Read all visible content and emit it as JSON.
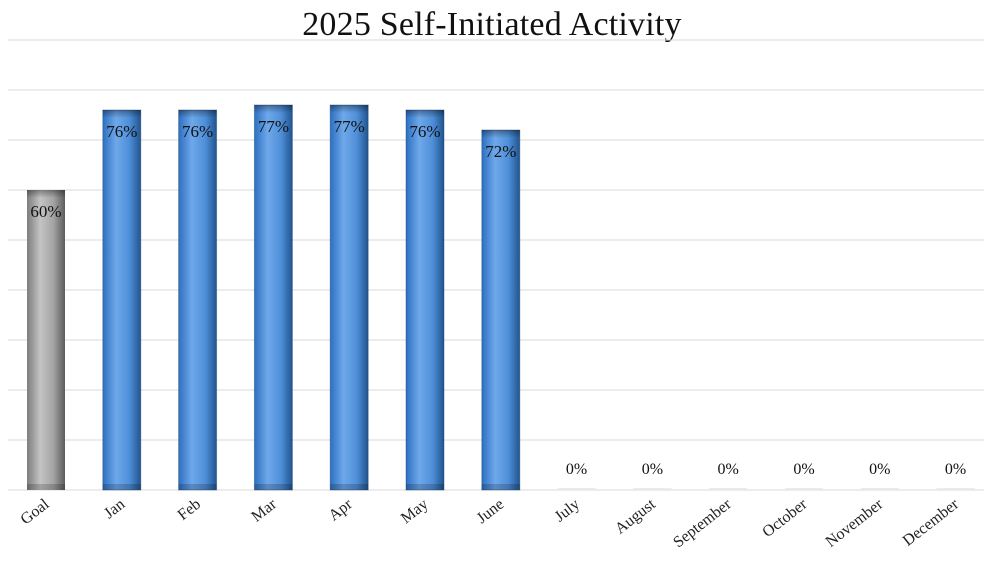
{
  "chart_data": {
    "type": "bar",
    "title": "2025 Self-Initiated Activity",
    "xlabel": "",
    "ylabel": "",
    "categories": [
      "Goal",
      "Jan",
      "Feb",
      "Mar",
      "Apr",
      "May",
      "June",
      "July",
      "August",
      "September",
      "October",
      "November",
      "December"
    ],
    "values": [
      60,
      76,
      76,
      77,
      77,
      76,
      72,
      0,
      0,
      0,
      0,
      0,
      0
    ],
    "value_labels": [
      "60%",
      "76%",
      "76%",
      "77%",
      "77%",
      "76%",
      "72%",
      "0%",
      "0%",
      "0%",
      "0%",
      "0%",
      "0%"
    ],
    "ylim": [
      0,
      90
    ],
    "grid": true,
    "legend": "none",
    "colors": {
      "goal": "#9a9a9a",
      "month": "#4a8ad4",
      "gridline": "#d9d9d9"
    }
  }
}
